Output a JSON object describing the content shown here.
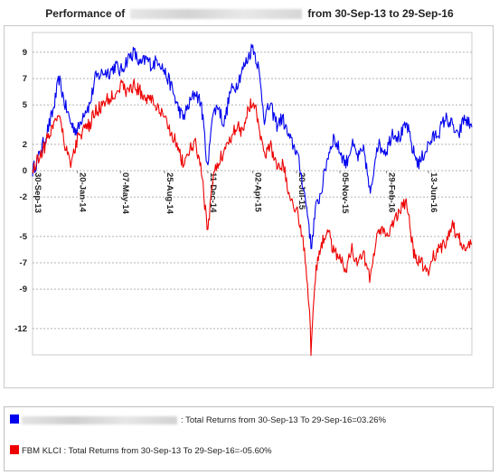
{
  "title": {
    "prefix": "Performance of",
    "suffix": "from 30-Sep-13 to 29-Sep-16"
  },
  "legend": [
    {
      "color": "#0000ee",
      "label": "",
      "text": ": Total Returns from 30-Sep-13 To 29-Sep-16=03.26%"
    },
    {
      "color": "#ee0000",
      "label": "FBM KLCI",
      "text": " : Total Returns from 30-Sep-13 To 29-Sep-16=-05.60%"
    }
  ],
  "chart_data": {
    "type": "line",
    "ylim": [
      -14,
      10.5
    ],
    "yticks": [
      9,
      7,
      5,
      2,
      0,
      -2,
      -5,
      -7,
      -9,
      -12
    ],
    "xlim": [
      "2013-09-30",
      "2016-09-29"
    ],
    "xticks": [
      "30-Sep-13",
      "20-Jan-14",
      "07-May-14",
      "25-Aug-14",
      "11-Dec-14",
      "02-Apr-15",
      "20-Jul-15",
      "05-Nov-15",
      "29-Feb-16",
      "13-Jun-16"
    ],
    "grid": true,
    "series": [
      {
        "name": "",
        "color": "#0000ee",
        "x": [
          "2013-09-30",
          "2013-10-15",
          "2013-11-01",
          "2013-11-20",
          "2013-12-05",
          "2013-12-20",
          "2014-01-05",
          "2014-01-20",
          "2014-02-05",
          "2014-02-20",
          "2014-03-05",
          "2014-03-25",
          "2014-04-10",
          "2014-04-25",
          "2014-05-07",
          "2014-05-25",
          "2014-06-10",
          "2014-06-25",
          "2014-07-10",
          "2014-07-25",
          "2014-08-10",
          "2014-08-25",
          "2014-09-10",
          "2014-09-25",
          "2014-10-10",
          "2014-10-25",
          "2014-11-10",
          "2014-11-25",
          "2014-12-11",
          "2014-12-20",
          "2015-01-05",
          "2015-01-20",
          "2015-02-05",
          "2015-02-20",
          "2015-03-05",
          "2015-03-20",
          "2015-04-02",
          "2015-04-15",
          "2015-05-01",
          "2015-05-15",
          "2015-06-01",
          "2015-06-15",
          "2015-07-01",
          "2015-07-20",
          "2015-08-05",
          "2015-08-20",
          "2015-08-25",
          "2015-09-05",
          "2015-09-20",
          "2015-10-05",
          "2015-10-20",
          "2015-11-05",
          "2015-11-20",
          "2015-12-05",
          "2015-12-20",
          "2016-01-05",
          "2016-01-20",
          "2016-02-05",
          "2016-02-29",
          "2016-03-15",
          "2016-04-01",
          "2016-04-20",
          "2016-05-05",
          "2016-05-20",
          "2016-06-13",
          "2016-06-25",
          "2016-07-10",
          "2016-07-25",
          "2016-08-10",
          "2016-08-25",
          "2016-09-10",
          "2016-09-29"
        ],
        "values": [
          0,
          1.0,
          2.5,
          4.5,
          7.0,
          5.0,
          3.5,
          3.0,
          4.5,
          5.0,
          7.0,
          7.5,
          7.5,
          8.0,
          7.5,
          8.5,
          9.0,
          8.0,
          8.5,
          8.0,
          8.5,
          7.5,
          6.5,
          5.0,
          4.0,
          5.0,
          6.0,
          5.0,
          0,
          4.0,
          5.0,
          3.5,
          6.0,
          6.5,
          7.5,
          8.5,
          9.5,
          8.0,
          4.0,
          5.0,
          3.5,
          4.0,
          2.5,
          1.5,
          -1.0,
          -4.0,
          -6.0,
          -3.0,
          -1.5,
          1.0,
          2.5,
          1.5,
          0.5,
          2.0,
          1.0,
          1.5,
          -2.0,
          2.0,
          1.5,
          3.0,
          2.5,
          3.5,
          1.5,
          0.5,
          2.0,
          2.5,
          3.0,
          4.0,
          3.5,
          2.5,
          4.0,
          3.3
        ]
      },
      {
        "name": "FBM KLCI",
        "color": "#ee0000",
        "x": [
          "2013-09-30",
          "2013-10-15",
          "2013-11-01",
          "2013-11-20",
          "2013-12-05",
          "2013-12-20",
          "2014-01-05",
          "2014-01-20",
          "2014-02-05",
          "2014-02-20",
          "2014-03-05",
          "2014-03-25",
          "2014-04-10",
          "2014-04-25",
          "2014-05-07",
          "2014-05-25",
          "2014-06-10",
          "2014-06-25",
          "2014-07-10",
          "2014-07-25",
          "2014-08-10",
          "2014-08-25",
          "2014-09-10",
          "2014-09-25",
          "2014-10-10",
          "2014-10-25",
          "2014-11-10",
          "2014-11-25",
          "2014-12-11",
          "2014-12-20",
          "2015-01-05",
          "2015-01-20",
          "2015-02-05",
          "2015-02-20",
          "2015-03-05",
          "2015-03-20",
          "2015-04-02",
          "2015-04-15",
          "2015-05-01",
          "2015-05-15",
          "2015-06-01",
          "2015-06-15",
          "2015-07-01",
          "2015-07-20",
          "2015-08-05",
          "2015-08-20",
          "2015-08-25",
          "2015-09-05",
          "2015-09-20",
          "2015-10-05",
          "2015-10-20",
          "2015-11-05",
          "2015-11-20",
          "2015-12-05",
          "2015-12-20",
          "2016-01-05",
          "2016-01-20",
          "2016-02-05",
          "2016-02-29",
          "2016-03-15",
          "2016-04-01",
          "2016-04-20",
          "2016-05-05",
          "2016-05-20",
          "2016-06-13",
          "2016-06-25",
          "2016-07-10",
          "2016-07-25",
          "2016-08-10",
          "2016-08-25",
          "2016-09-10",
          "2016-09-29"
        ],
        "values": [
          0,
          1.0,
          2.0,
          3.5,
          4.5,
          2.0,
          0.5,
          2.5,
          3.0,
          3.5,
          4.5,
          5.0,
          5.5,
          6.0,
          6.5,
          6.0,
          6.5,
          6.0,
          5.5,
          5.5,
          4.5,
          4.0,
          3.0,
          2.0,
          0.5,
          1.5,
          2.0,
          0,
          -5.0,
          -1.0,
          0.5,
          1.5,
          2.5,
          3.5,
          3.0,
          4.5,
          5.5,
          4.0,
          1.0,
          2.0,
          0.5,
          0.5,
          -1.5,
          -3.0,
          -5.0,
          -10.0,
          -13.5,
          -8.0,
          -5.5,
          -4.5,
          -6.0,
          -6.5,
          -7.5,
          -6.0,
          -7.0,
          -6.5,
          -8.5,
          -4.5,
          -5.0,
          -4.0,
          -3.0,
          -2.5,
          -6.0,
          -7.0,
          -7.5,
          -6.5,
          -6.0,
          -5.5,
          -4.0,
          -5.0,
          -6.0,
          -5.6
        ]
      }
    ]
  }
}
